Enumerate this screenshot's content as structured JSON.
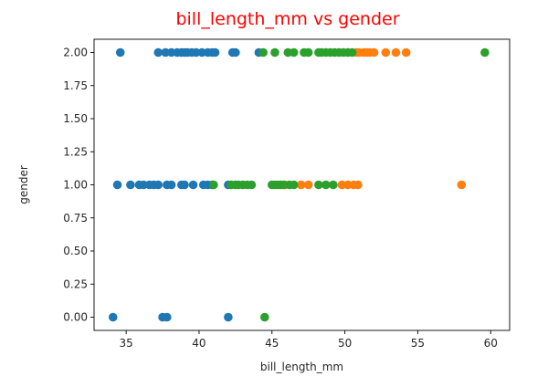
{
  "chart_data": {
    "type": "scatter",
    "title": "bill_length_mm vs gender",
    "xlabel": "bill_length_mm",
    "ylabel": "gender",
    "xlim": [
      32.8,
      61.3
    ],
    "ylim": [
      -0.1,
      2.1
    ],
    "x_ticks": [
      35,
      40,
      45,
      50,
      55,
      60
    ],
    "x_tick_labels": [
      "35",
      "40",
      "45",
      "50",
      "55",
      "60"
    ],
    "y_ticks": [
      0,
      0.25,
      0.5,
      0.75,
      1.0,
      1.25,
      1.5,
      1.75,
      2.0
    ],
    "y_tick_labels": [
      "0.00",
      "0.25",
      "0.50",
      "0.75",
      "1.00",
      "1.25",
      "1.50",
      "1.75",
      "2.00"
    ],
    "grid": false,
    "series": [
      {
        "color": "#1f77b4",
        "points": [
          [
            34.6,
            2
          ],
          [
            37.2,
            2
          ],
          [
            37.7,
            2
          ],
          [
            38.1,
            2
          ],
          [
            38.5,
            2
          ],
          [
            38.8,
            2
          ],
          [
            39.0,
            2
          ],
          [
            39.2,
            2
          ],
          [
            39.5,
            2
          ],
          [
            39.8,
            2
          ],
          [
            40.2,
            2
          ],
          [
            40.6,
            2
          ],
          [
            40.9,
            2
          ],
          [
            41.1,
            2
          ],
          [
            42.3,
            2
          ],
          [
            42.5,
            2
          ],
          [
            44.1,
            2
          ],
          [
            34.4,
            1
          ],
          [
            35.3,
            1
          ],
          [
            35.9,
            1
          ],
          [
            36.2,
            1
          ],
          [
            36.6,
            1
          ],
          [
            36.9,
            1
          ],
          [
            37.2,
            1
          ],
          [
            37.8,
            1
          ],
          [
            38.1,
            1
          ],
          [
            38.8,
            1
          ],
          [
            39.0,
            1
          ],
          [
            39.6,
            1
          ],
          [
            40.3,
            1
          ],
          [
            40.6,
            1
          ],
          [
            40.9,
            1
          ],
          [
            42.0,
            1
          ],
          [
            34.1,
            0
          ],
          [
            37.5,
            0
          ],
          [
            37.8,
            0
          ],
          [
            42.0,
            0
          ]
        ]
      },
      {
        "color": "#ff7f0e",
        "points": [
          [
            50.8,
            2
          ],
          [
            51.0,
            2
          ],
          [
            51.3,
            2
          ],
          [
            51.5,
            2
          ],
          [
            51.7,
            2
          ],
          [
            52.0,
            2
          ],
          [
            52.8,
            2
          ],
          [
            53.5,
            2
          ],
          [
            54.2,
            2
          ],
          [
            45.9,
            1
          ],
          [
            47.0,
            1
          ],
          [
            47.5,
            1
          ],
          [
            49.8,
            1
          ],
          [
            50.2,
            1
          ],
          [
            50.6,
            1
          ],
          [
            50.9,
            1
          ],
          [
            58.0,
            1
          ]
        ]
      },
      {
        "color": "#2ca02c",
        "points": [
          [
            44.4,
            2
          ],
          [
            45.2,
            2
          ],
          [
            46.1,
            2
          ],
          [
            46.5,
            2
          ],
          [
            47.2,
            2
          ],
          [
            47.5,
            2
          ],
          [
            48.2,
            2
          ],
          [
            48.4,
            2
          ],
          [
            48.7,
            2
          ],
          [
            49.0,
            2
          ],
          [
            49.3,
            2
          ],
          [
            49.6,
            2
          ],
          [
            49.9,
            2
          ],
          [
            50.2,
            2
          ],
          [
            50.5,
            2
          ],
          [
            59.6,
            2
          ],
          [
            41.0,
            1
          ],
          [
            42.2,
            1
          ],
          [
            42.5,
            1
          ],
          [
            42.7,
            1
          ],
          [
            43.0,
            1
          ],
          [
            43.3,
            1
          ],
          [
            43.6,
            1
          ],
          [
            45.0,
            1
          ],
          [
            45.2,
            1
          ],
          [
            45.4,
            1
          ],
          [
            45.6,
            1
          ],
          [
            45.8,
            1
          ],
          [
            46.2,
            1
          ],
          [
            46.5,
            1
          ],
          [
            48.2,
            1
          ],
          [
            48.7,
            1
          ],
          [
            49.2,
            1
          ],
          [
            44.5,
            0
          ]
        ]
      }
    ]
  }
}
